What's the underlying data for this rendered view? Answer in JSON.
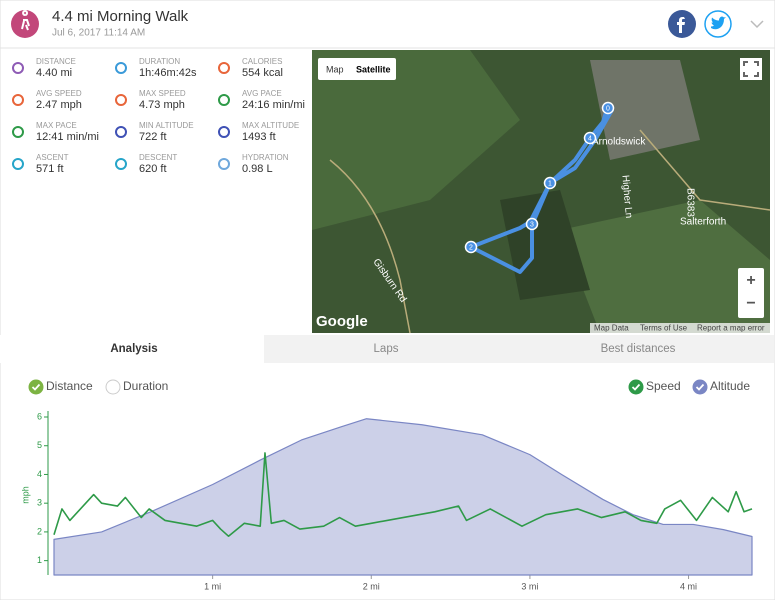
{
  "header": {
    "title": "4.4 mi Morning Walk",
    "date": "Jul 6, 2017 11:14 AM"
  },
  "stats": [
    {
      "label": "DISTANCE",
      "value": "4.40 mi"
    },
    {
      "label": "DURATION",
      "value": "1h:46m:42s"
    },
    {
      "label": "CALORIES",
      "value": "554 kcal"
    },
    {
      "label": "AVG SPEED",
      "value": "2.47 mph"
    },
    {
      "label": "MAX SPEED",
      "value": "4.73 mph"
    },
    {
      "label": "AVG PACE",
      "value": "24:16 min/mi"
    },
    {
      "label": "MAX PACE",
      "value": "12:41 min/mi"
    },
    {
      "label": "MIN ALTITUDE",
      "value": "722 ft"
    },
    {
      "label": "MAX ALTITUDE",
      "value": "1493 ft"
    },
    {
      "label": "ASCENT",
      "value": "571 ft"
    },
    {
      "label": "DESCENT",
      "value": "620 ft"
    },
    {
      "label": "HYDRATION",
      "value": "0.98 L"
    }
  ],
  "map": {
    "buttons": [
      "Map",
      "Satellite"
    ],
    "places": [
      "Arnoldswick",
      "Salterforth",
      "Gisburn Rd",
      "Higher Ln",
      "B6383"
    ],
    "markers": [
      "0",
      "1",
      "2",
      "3",
      "4"
    ],
    "zoom": [
      "+",
      "−"
    ],
    "brand": "Google",
    "footer": [
      "Map Data",
      "Terms of Use",
      "Report a map error"
    ]
  },
  "tabs": [
    "Analysis",
    "Laps",
    "Best distances"
  ],
  "chart_data": {
    "type": "line",
    "toggles": [
      "Distance",
      "Duration"
    ],
    "y_label": "mph",
    "xlim": [
      0,
      4.4
    ],
    "xticks": [
      {
        "value": 1,
        "label": "1 mi"
      },
      {
        "value": 2,
        "label": "2 mi"
      },
      {
        "value": 3,
        "label": "3 mi"
      },
      {
        "value": 4,
        "label": "4 mi"
      }
    ],
    "ylim": [
      0.5,
      6
    ],
    "yticks": [
      1,
      2,
      3,
      4,
      5,
      6
    ],
    "series": [
      {
        "name": "Speed",
        "color": "#2e9a48",
        "x": [
          0,
          0.05,
          0.1,
          0.2,
          0.25,
          0.3,
          0.4,
          0.45,
          0.55,
          0.6,
          0.7,
          0.8,
          0.9,
          1.0,
          1.05,
          1.1,
          1.2,
          1.3,
          1.33,
          1.37,
          1.45,
          1.55,
          1.7,
          1.8,
          1.9,
          2.0,
          2.2,
          2.4,
          2.55,
          2.6,
          2.75,
          2.95,
          3.1,
          3.3,
          3.45,
          3.6,
          3.7,
          3.8,
          3.85,
          3.95,
          4.05,
          4.15,
          4.25,
          4.3,
          4.35,
          4.4
        ],
        "values": [
          1.9,
          2.8,
          2.4,
          3.0,
          3.3,
          3.0,
          2.9,
          3.2,
          2.5,
          2.8,
          2.4,
          2.3,
          2.2,
          2.4,
          2.1,
          1.85,
          2.3,
          2.2,
          4.75,
          2.3,
          2.4,
          2.1,
          2.2,
          2.5,
          2.2,
          2.3,
          2.5,
          2.7,
          2.9,
          2.4,
          2.8,
          2.2,
          2.6,
          2.8,
          2.5,
          2.7,
          2.4,
          2.3,
          2.8,
          3.1,
          2.4,
          3.2,
          2.7,
          3.4,
          2.7,
          2.8
        ]
      },
      {
        "name": "Altitude",
        "color": "#7a86c4",
        "fill": "#ccd0e8",
        "x": [
          0,
          0.3,
          0.61,
          1.0,
          1.3,
          1.56,
          1.81,
          1.97,
          2.32,
          2.7,
          3.0,
          3.2,
          3.46,
          3.65,
          3.84,
          4.03,
          4.22,
          4.4
        ],
        "values": [
          1.74,
          2.0,
          2.7,
          3.65,
          4.5,
          5.2,
          5.66,
          5.94,
          5.73,
          5.38,
          4.69,
          4.0,
          3.13,
          2.6,
          2.26,
          2.26,
          2.08,
          1.84
        ]
      }
    ]
  }
}
